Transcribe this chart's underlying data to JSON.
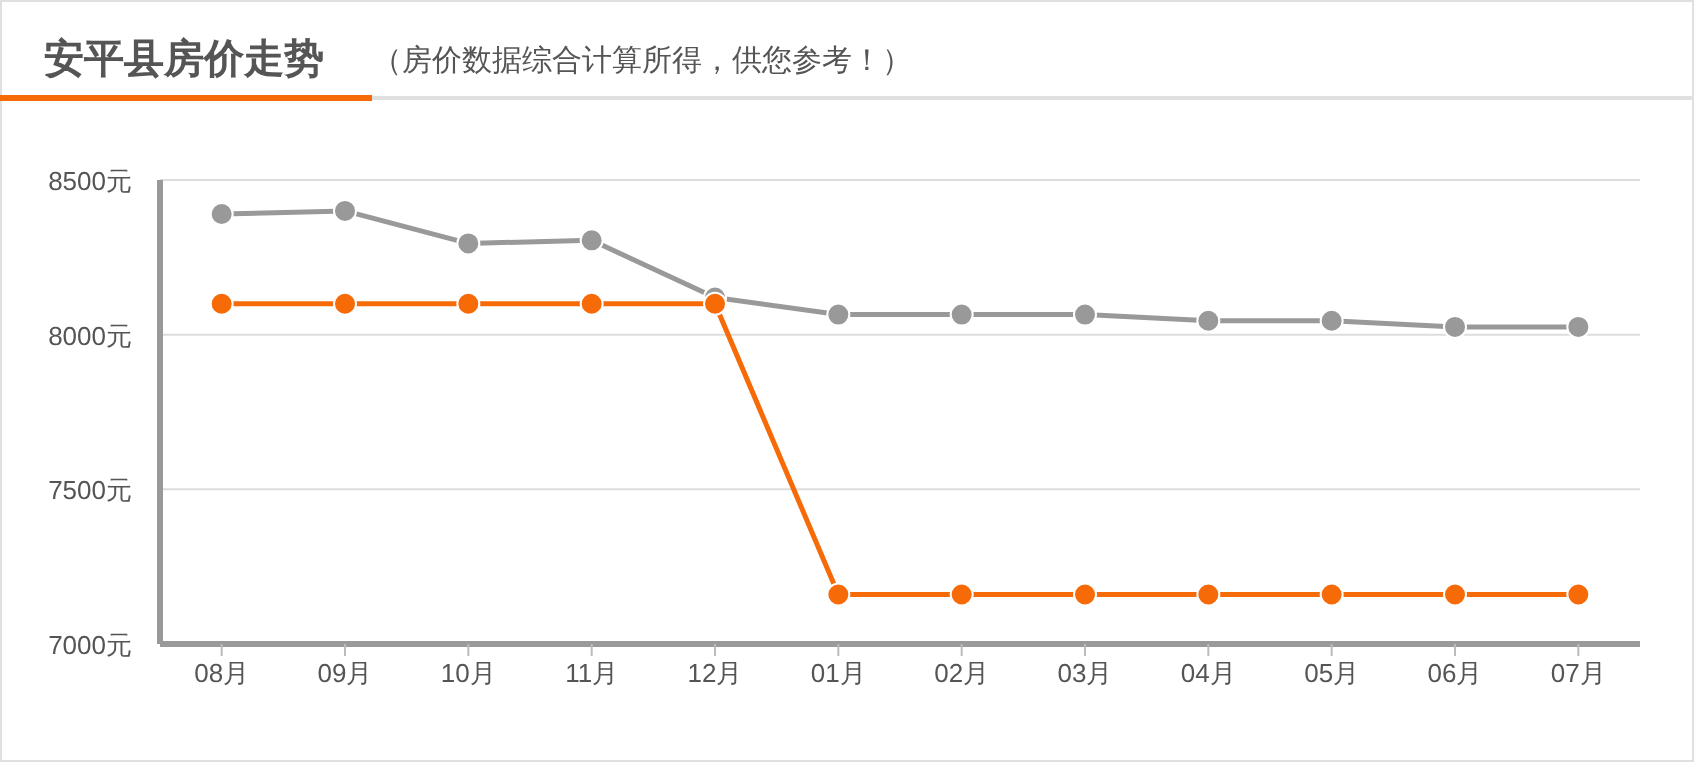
{
  "chart_data": {
    "type": "line",
    "title": "安平县房价走势",
    "subtitle": "（房价数据综合计算所得，供您参考！）",
    "categories": [
      "08月",
      "09月",
      "10月",
      "11月",
      "12月",
      "01月",
      "02月",
      "03月",
      "04月",
      "05月",
      "06月",
      "07月"
    ],
    "series": [
      {
        "color": "#999999",
        "values": [
          8390,
          8400,
          8295,
          8305,
          8120,
          8065,
          8065,
          8065,
          8045,
          8045,
          8025,
          8025
        ]
      },
      {
        "color": "#f76a08",
        "values": [
          8100,
          8100,
          8100,
          8100,
          8100,
          7160,
          7160,
          7160,
          7160,
          7160,
          7160,
          7160
        ]
      }
    ],
    "ylim": [
      7000,
      8500
    ],
    "yticks": [
      {
        "value": 7000,
        "label": "7000元"
      },
      {
        "value": 7500,
        "label": "7500元"
      },
      {
        "value": 8000,
        "label": "8000元"
      },
      {
        "value": 8500,
        "label": "8500元"
      }
    ],
    "grid": "y",
    "marker": "circle",
    "line_style": "solid"
  }
}
